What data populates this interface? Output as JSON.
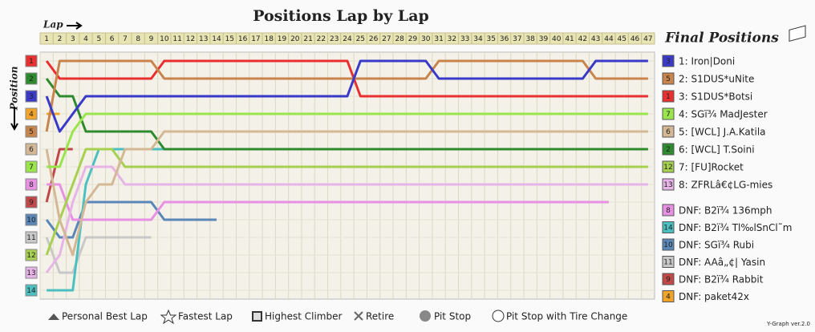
{
  "chart_data": {
    "type": "line",
    "title": "Positions Lap by Lap",
    "x_label": "Lap",
    "y_label": "Position",
    "panel_title": "Final Positions",
    "credit": "Y-Graph ver.2.0",
    "y_inverted": true,
    "ylim": [
      1,
      14
    ],
    "yticks": [
      1,
      2,
      3,
      4,
      5,
      6,
      7,
      8,
      9,
      10,
      11,
      12,
      13,
      14
    ],
    "x": [
      1,
      2,
      3,
      4,
      5,
      6,
      7,
      8,
      9,
      10,
      11,
      12,
      13,
      14,
      15,
      16,
      17,
      18,
      19,
      20,
      21,
      22,
      23,
      24,
      25,
      26,
      27,
      28,
      29,
      30,
      31,
      32,
      33,
      34,
      35,
      36,
      37,
      38,
      39,
      40,
      41,
      42,
      43,
      44,
      45,
      46,
      47
    ],
    "legend_items": [
      "Personal Best Lap",
      "Fastest Lap",
      "Highest Climber",
      "Retire",
      "Pit Stop",
      "Pit Stop with Tire Change"
    ],
    "series": [
      {
        "name": "1: Iron|Doni",
        "color": "#3a3ac8",
        "values": [
          3,
          5,
          4,
          3,
          3,
          3,
          3,
          3,
          3,
          3,
          3,
          3,
          3,
          3,
          3,
          3,
          3,
          3,
          3,
          3,
          3,
          3,
          3,
          3,
          1,
          1,
          1,
          1,
          1,
          1,
          2,
          2,
          2,
          2,
          2,
          2,
          2,
          2,
          2,
          2,
          2,
          2,
          1,
          1,
          1,
          1,
          1
        ]
      },
      {
        "name": "2: S1DUS*uNite",
        "color": "#c8844c",
        "values": [
          5,
          1,
          1,
          1,
          1,
          1,
          1,
          1,
          1,
          2,
          2,
          2,
          2,
          2,
          2,
          2,
          2,
          2,
          2,
          2,
          2,
          2,
          2,
          2,
          2,
          2,
          2,
          2,
          2,
          2,
          1,
          1,
          1,
          1,
          1,
          1,
          1,
          1,
          1,
          1,
          1,
          1,
          2,
          2,
          2,
          2,
          2
        ]
      },
      {
        "name": "3: S1DUS*Botsi",
        "color": "#e83030",
        "values": [
          1,
          2,
          2,
          2,
          2,
          2,
          2,
          2,
          2,
          1,
          1,
          1,
          1,
          1,
          1,
          1,
          1,
          1,
          1,
          1,
          1,
          1,
          1,
          1,
          3,
          3,
          3,
          3,
          3,
          3,
          3,
          3,
          3,
          3,
          3,
          3,
          3,
          3,
          3,
          3,
          3,
          3,
          3,
          3,
          3,
          3,
          3
        ]
      },
      {
        "name": "4: SGï¾ MadJester",
        "color": "#9ae44c",
        "values": [
          7,
          7,
          5,
          4,
          4,
          4,
          4,
          4,
          4,
          4,
          4,
          4,
          4,
          4,
          4,
          4,
          4,
          4,
          4,
          4,
          4,
          4,
          4,
          4,
          4,
          4,
          4,
          4,
          4,
          4,
          4,
          4,
          4,
          4,
          4,
          4,
          4,
          4,
          4,
          4,
          4,
          4,
          4,
          4,
          4,
          4,
          4
        ]
      },
      {
        "name": "5: [WCL] J.A.Katila",
        "color": "#d4b896",
        "values": [
          6,
          10,
          12,
          9,
          8,
          8,
          6,
          6,
          6,
          5,
          5,
          5,
          5,
          5,
          5,
          5,
          5,
          5,
          5,
          5,
          5,
          5,
          5,
          5,
          5,
          5,
          5,
          5,
          5,
          5,
          5,
          5,
          5,
          5,
          5,
          5,
          5,
          5,
          5,
          5,
          5,
          5,
          5,
          5,
          5,
          5,
          5
        ]
      },
      {
        "name": "6: [WCL] T.Soini",
        "color": "#2e8a2e",
        "values": [
          2,
          3,
          3,
          5,
          5,
          5,
          5,
          5,
          5,
          6,
          6,
          6,
          6,
          6,
          6,
          6,
          6,
          6,
          6,
          6,
          6,
          6,
          6,
          6,
          6,
          6,
          6,
          6,
          6,
          6,
          6,
          6,
          6,
          6,
          6,
          6,
          6,
          6,
          6,
          6,
          6,
          6,
          6,
          6,
          6,
          6,
          6
        ]
      },
      {
        "name": "7: [FU]Rocket",
        "color": "#a8d050",
        "values": [
          12,
          10,
          8,
          6,
          6,
          6,
          7,
          7,
          7,
          7,
          7,
          7,
          7,
          7,
          7,
          7,
          7,
          7,
          7,
          7,
          7,
          7,
          7,
          7,
          7,
          7,
          7,
          7,
          7,
          7,
          7,
          7,
          7,
          7,
          7,
          7,
          7,
          7,
          7,
          7,
          7,
          7,
          7,
          7,
          7,
          7,
          7
        ]
      },
      {
        "name": "8: ZFRLâ€¢LG-mies",
        "color": "#e6b4e6",
        "values": [
          13,
          12,
          9,
          7,
          7,
          7,
          8,
          8,
          8,
          8,
          8,
          8,
          8,
          8,
          8,
          8,
          8,
          8,
          8,
          8,
          8,
          8,
          8,
          8,
          8,
          8,
          8,
          8,
          8,
          8,
          8,
          8,
          8,
          8,
          8,
          8,
          8,
          8,
          8,
          8,
          8,
          8,
          8,
          8,
          8,
          8,
          8
        ]
      },
      {
        "name": "DNF: B2ï¾ 136mph",
        "color": "#e890e4",
        "values": [
          8,
          8,
          10,
          10,
          10,
          10,
          10,
          10,
          10,
          9,
          9,
          9,
          9,
          9,
          9,
          9,
          9,
          9,
          9,
          9,
          9,
          9,
          9,
          9,
          9,
          9,
          9,
          9,
          9,
          9,
          9,
          9,
          9,
          9,
          9,
          9,
          9,
          9,
          9,
          9,
          9,
          9,
          9,
          9,
          null,
          null,
          null
        ]
      },
      {
        "name": "DNF: B2ï¾ Tl‰lSnCl˜m",
        "color": "#4cc0c0",
        "values": [
          14,
          14,
          14,
          8,
          6,
          6,
          6,
          6,
          6,
          6,
          6,
          6,
          6,
          6,
          6,
          6,
          6,
          6,
          6,
          6,
          null,
          null,
          null,
          null,
          null,
          null,
          null,
          null,
          null,
          null,
          null,
          null,
          null,
          null,
          null,
          null,
          null,
          null,
          null,
          null,
          null,
          null,
          null,
          null,
          null,
          null,
          null
        ]
      },
      {
        "name": "DNF: SGï¾ Rubi",
        "color": "#5a86b8",
        "values": [
          10,
          11,
          11,
          9,
          9,
          9,
          9,
          9,
          9,
          10,
          10,
          10,
          10,
          10,
          null,
          null,
          null,
          null,
          null,
          null,
          null,
          null,
          null,
          null,
          null,
          null,
          null,
          null,
          null,
          null,
          null,
          null,
          null,
          null,
          null,
          null,
          null,
          null,
          null,
          null,
          null,
          null,
          null,
          null,
          null,
          null,
          null
        ]
      },
      {
        "name": "DNF: AAâ„¢| Yasin",
        "color": "#c8c8c8",
        "values": [
          11,
          13,
          13,
          11,
          11,
          11,
          11,
          11,
          11,
          null,
          null,
          null,
          null,
          null,
          null,
          null,
          null,
          null,
          null,
          null,
          null,
          null,
          null,
          null,
          null,
          null,
          null,
          null,
          null,
          null,
          null,
          null,
          null,
          null,
          null,
          null,
          null,
          null,
          null,
          null,
          null,
          null,
          null,
          null,
          null,
          null,
          null
        ]
      },
      {
        "name": "DNF: B2ï¾ Rabbit",
        "color": "#c04848",
        "values": [
          9,
          6,
          6,
          null,
          null,
          null,
          null,
          null,
          null,
          null,
          null,
          null,
          null,
          null,
          null,
          null,
          null,
          null,
          null,
          null,
          null,
          null,
          null,
          null,
          null,
          null,
          null,
          null,
          null,
          null,
          null,
          null,
          null,
          null,
          null,
          null,
          null,
          null,
          null,
          null,
          null,
          null,
          null,
          null,
          null,
          null,
          null
        ]
      },
      {
        "name": "DNF: paket42x",
        "color": "#f2a428",
        "values": [
          4,
          4,
          null,
          null,
          null,
          null,
          null,
          null,
          null,
          null,
          null,
          null,
          null,
          null,
          null,
          null,
          null,
          null,
          null,
          null,
          null,
          null,
          null,
          null,
          null,
          null,
          null,
          null,
          null,
          null,
          null,
          null,
          null,
          null,
          null,
          null,
          null,
          null,
          null,
          null,
          null,
          null,
          null,
          null,
          null,
          null,
          null
        ]
      }
    ]
  }
}
